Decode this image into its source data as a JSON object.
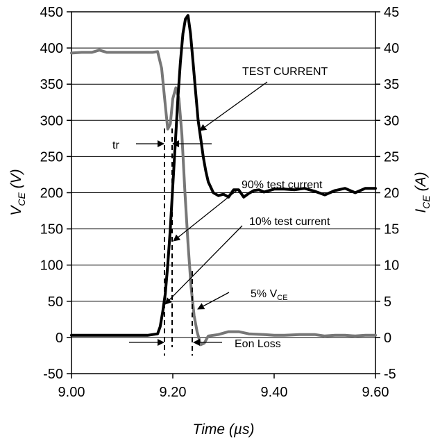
{
  "chart_data": {
    "type": "line",
    "xlabel": "Time (µs)",
    "ylabel_left": {
      "main": "V",
      "sub": "CE",
      "unit": " (V)"
    },
    "ylabel_right": {
      "main": "I",
      "sub": "CE",
      "unit": " (A)"
    },
    "xlim": [
      9.0,
      9.6
    ],
    "ylim_left": [
      -50,
      450
    ],
    "ylim_right": [
      -5,
      45
    ],
    "x_ticks": [
      "9.00",
      "9.20",
      "9.40",
      "9.60"
    ],
    "y_left_ticks": [
      "450",
      "400",
      "350",
      "300",
      "250",
      "200",
      "150",
      "100",
      "50",
      "0",
      "-50"
    ],
    "y_right_ticks": [
      "45",
      "40",
      "35",
      "30",
      "25",
      "20",
      "15",
      "10",
      "5",
      "0",
      "-5"
    ],
    "grid": {
      "horizontal": true,
      "vertical": false
    },
    "series": [
      {
        "id": "vce",
        "color": "#777777",
        "axis": "left",
        "x": [
          9.0,
          9.02,
          9.04,
          9.055,
          9.07,
          9.1,
          9.13,
          9.16,
          9.17,
          9.178,
          9.186,
          9.19,
          9.195,
          9.2,
          9.206,
          9.212,
          9.218,
          9.224,
          9.23,
          9.236,
          9.242,
          9.248,
          9.255,
          9.262,
          9.27,
          9.29,
          9.31,
          9.33,
          9.35,
          9.38,
          9.4,
          9.42,
          9.45,
          9.48,
          9.5,
          9.52,
          9.54,
          9.56,
          9.58,
          9.6
        ],
        "y": [
          393,
          394,
          394,
          397,
          394,
          394,
          394,
          394,
          395,
          372,
          315,
          288,
          295,
          330,
          345,
          330,
          280,
          200,
          130,
          70,
          30,
          8,
          -10,
          -8,
          2,
          4,
          8,
          8,
          5,
          4,
          3,
          3,
          4,
          4,
          2,
          3,
          3,
          2,
          3,
          3
        ]
      },
      {
        "id": "ice",
        "color": "#000000",
        "axis": "right",
        "x": [
          9.0,
          9.05,
          9.1,
          9.15,
          9.17,
          9.175,
          9.18,
          9.185,
          9.19,
          9.195,
          9.2,
          9.205,
          9.21,
          9.215,
          9.22,
          9.225,
          9.23,
          9.235,
          9.24,
          9.245,
          9.25,
          9.255,
          9.26,
          9.265,
          9.27,
          9.28,
          9.29,
          9.3,
          9.31,
          9.32,
          9.33,
          9.34,
          9.35,
          9.36,
          9.37,
          9.38,
          9.39,
          9.4,
          9.42,
          9.44,
          9.46,
          9.48,
          9.5,
          9.52,
          9.54,
          9.56,
          9.58,
          9.6
        ],
        "y": [
          0.3,
          0.3,
          0.3,
          0.3,
          0.5,
          1.5,
          3.5,
          6,
          10,
          15,
          21,
          27,
          33,
          38,
          42,
          44,
          44.5,
          42,
          38,
          34,
          30,
          27.5,
          25,
          23,
          21.5,
          20,
          19.6,
          19.8,
          19.4,
          20.4,
          20.4,
          19.4,
          19.9,
          20.3,
          20.4,
          20.1,
          20.3,
          20.5,
          20.5,
          20.4,
          20.6,
          20.2,
          19.7,
          20.3,
          20.6,
          20.0,
          20.6,
          20.6
        ]
      }
    ],
    "annotations": {
      "test_current": "TEST CURRENT",
      "tr": "tr",
      "p90": "90% test current",
      "p10": "10% test current",
      "p5_main": "5% V",
      "p5_sub": "CE",
      "eon": "Eon Loss"
    }
  }
}
